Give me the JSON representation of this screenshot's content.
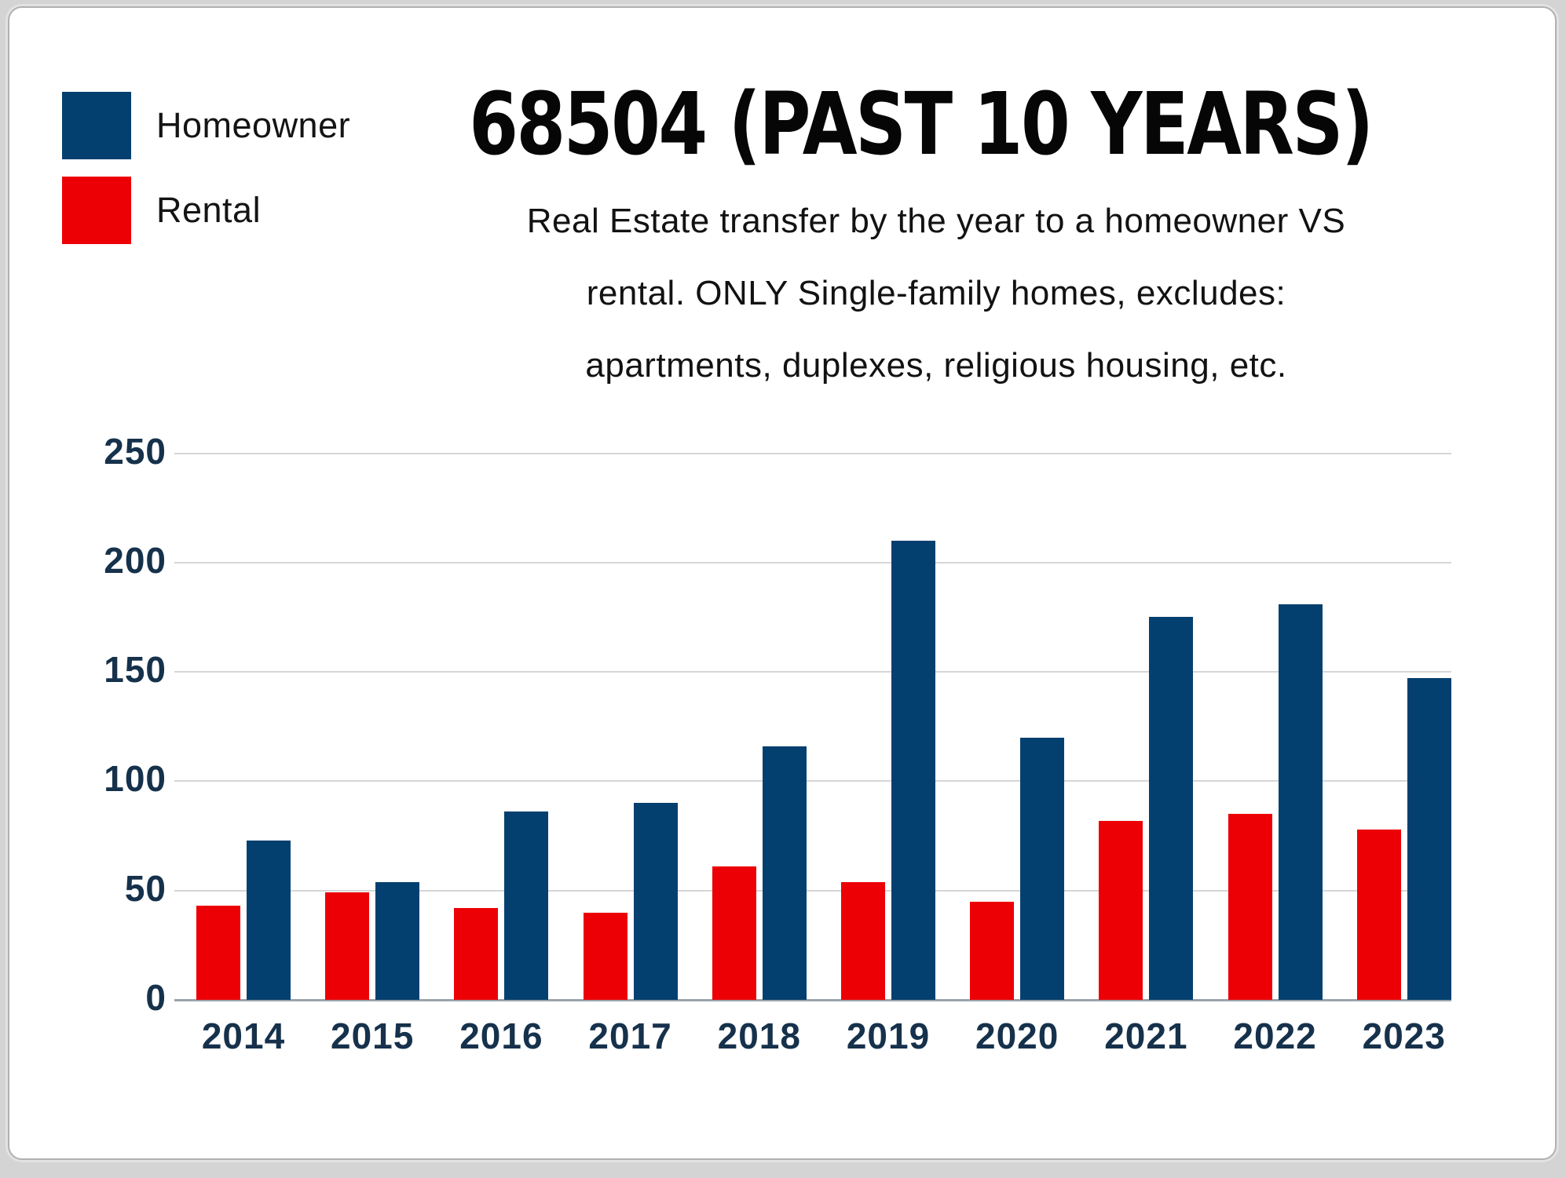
{
  "title": "68504 (PAST 10 YEARS)",
  "subtitle": {
    "lines": [
      "Real Estate transfer by the year to a homeowner VS",
      "rental. ONLY Single-family homes, excludes:",
      "apartments, duplexes, religious housing, etc."
    ]
  },
  "legend": {
    "items": [
      {
        "label": "Homeowner",
        "color": "#04406f"
      },
      {
        "label": "Rental",
        "color": "#ec0006"
      }
    ]
  },
  "chart_data": {
    "type": "bar",
    "categories": [
      "2014",
      "2015",
      "2016",
      "2017",
      "2018",
      "2019",
      "2020",
      "2021",
      "2022",
      "2023"
    ],
    "series": [
      {
        "name": "Rental",
        "color": "#ec0006",
        "values": [
          43,
          49,
          42,
          40,
          61,
          54,
          45,
          82,
          85,
          78
        ]
      },
      {
        "name": "Homeowner",
        "color": "#04406f",
        "values": [
          73,
          54,
          86,
          90,
          116,
          210,
          120,
          175,
          181,
          147
        ]
      }
    ],
    "title": "68504 (PAST 10 YEARS)",
    "xlabel": "",
    "ylabel": "",
    "ylim": [
      0,
      250
    ],
    "yticks": [
      0,
      50,
      100,
      150,
      200,
      250
    ],
    "grid": true,
    "legend_position": "top-left"
  },
  "colors": {
    "tick_label": "#16314b",
    "grid_line": "#d6d6d6",
    "axis_base_line": "#9aa3ab",
    "card_background": "#ffffff",
    "page_background": "#d4d4d4"
  }
}
